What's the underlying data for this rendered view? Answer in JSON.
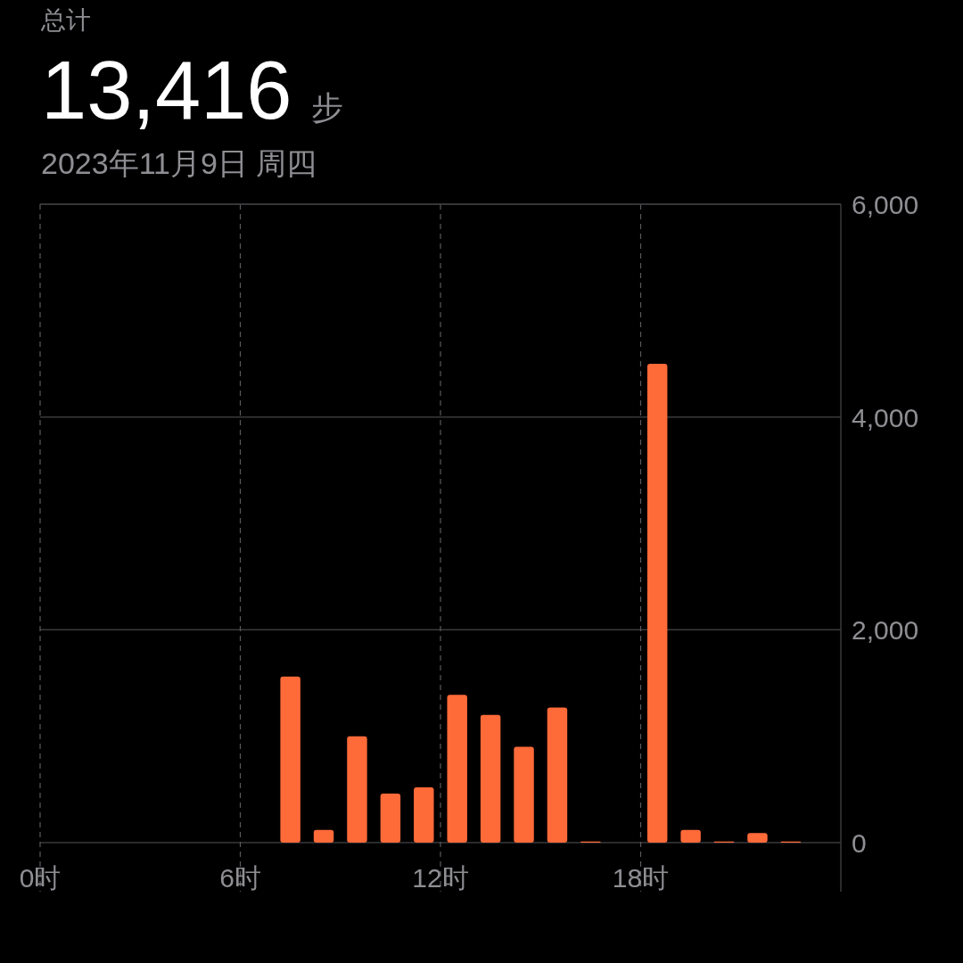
{
  "chart_data": {
    "type": "bar",
    "title": "13,416 步",
    "subtitle": "2023年11月9日 周四",
    "annotations": [
      "总计"
    ],
    "x": [
      7.5,
      8.5,
      9.5,
      10.5,
      11.5,
      12.5,
      13.5,
      14.5,
      15.5,
      16.5,
      18.5,
      19.5,
      20.5,
      21.5,
      22.5
    ],
    "values": [
      1560,
      120,
      1000,
      460,
      520,
      1390,
      1200,
      900,
      1270,
      10,
      4500,
      120,
      10,
      90,
      10
    ],
    "color": "#ff6a39",
    "xlim": [
      0,
      24
    ],
    "xticks": [
      {
        "value": 0,
        "label": "0时"
      },
      {
        "value": 6,
        "label": "6时"
      },
      {
        "value": 12,
        "label": "12时"
      },
      {
        "value": 18,
        "label": "18时"
      }
    ],
    "ylim": [
      0,
      6000
    ],
    "yticks": [
      {
        "value": 0,
        "label": "0"
      },
      {
        "value": 2000,
        "label": "2,000"
      },
      {
        "value": 4000,
        "label": "4,000"
      },
      {
        "value": 6000,
        "label": "6,000"
      }
    ],
    "grid": true
  }
}
